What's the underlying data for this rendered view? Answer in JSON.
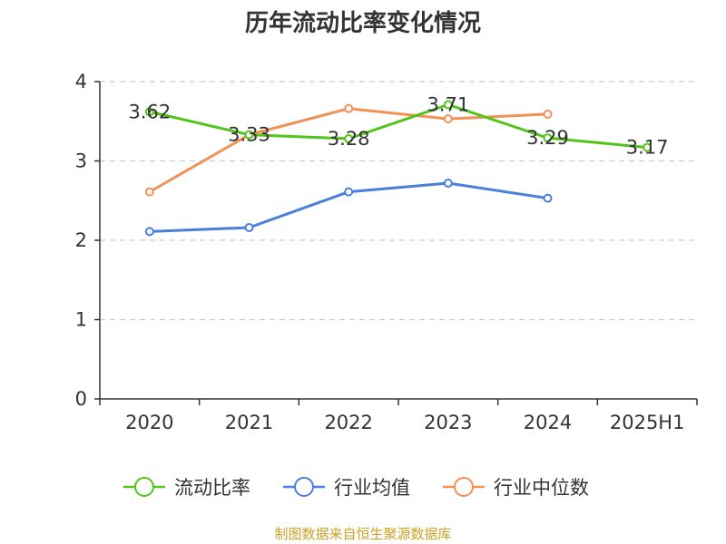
{
  "chart_data": {
    "type": "line",
    "title": "历年流动比率变化情况",
    "categories": [
      "2020",
      "2021",
      "2022",
      "2023",
      "2024",
      "2025H1"
    ],
    "ylim": [
      0,
      4
    ],
    "yticks": [
      "0",
      "1",
      "2",
      "3",
      "4"
    ],
    "grid": true,
    "legend_position": "bottom",
    "series": [
      {
        "name": "流动比率",
        "color": "#52c41a",
        "values": [
          3.62,
          3.33,
          3.28,
          3.71,
          3.29,
          3.17
        ],
        "labels": [
          "3.62",
          "3.33",
          "3.28",
          "3.71",
          "3.29",
          "3.17"
        ]
      },
      {
        "name": "行业均值",
        "color": "#4a7fdc",
        "values": [
          2.11,
          2.16,
          2.61,
          2.72,
          2.53,
          null
        ]
      },
      {
        "name": "行业中位数",
        "color": "#f39053",
        "values": [
          2.61,
          3.33,
          3.66,
          3.53,
          3.59,
          null
        ]
      }
    ],
    "source": "制图数据来自恒生聚源数据库"
  }
}
